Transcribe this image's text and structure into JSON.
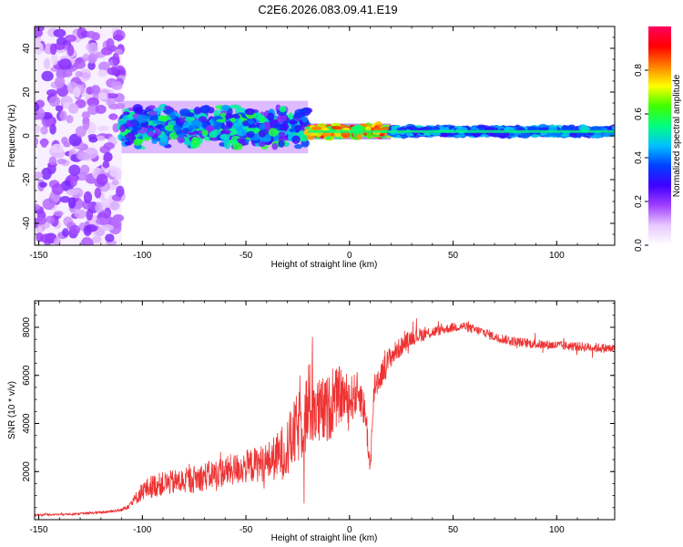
{
  "title": "C2E6.2026.083.09.41.E19",
  "chart_data": [
    {
      "type": "heatmap",
      "name": "spectrogram",
      "xlabel": "Height of straight line (km)",
      "ylabel": "Frequency (Hz)",
      "xlim": [
        -152,
        128
      ],
      "ylim": [
        -50,
        50
      ],
      "xticks": [
        -150,
        -100,
        -50,
        0,
        50,
        100
      ],
      "yticks": [
        -40,
        -20,
        0,
        20,
        40
      ],
      "colorbar": {
        "label": "Normalized spectral amplitude",
        "range": [
          0,
          1
        ],
        "ticks": [
          0.0,
          0.2,
          0.4,
          0.6,
          0.8
        ],
        "colors": [
          "#ffffff",
          "#e8c8ff",
          "#a040ff",
          "#4000ff",
          "#0040ff",
          "#00c0ff",
          "#00ff80",
          "#40ff00",
          "#ffff00",
          "#ff8000",
          "#ff0000",
          "#ff0060"
        ]
      },
      "bands": [
        {
          "x": [
            -152,
            -110
          ],
          "center": 0,
          "spread": 50,
          "amplitude": 0.2
        },
        {
          "x": [
            -110,
            -20
          ],
          "center": 4,
          "spread": 10,
          "amplitude": 0.55
        },
        {
          "x": [
            -20,
            20
          ],
          "center": 2,
          "spread": 3,
          "amplitude": 0.9
        },
        {
          "x": [
            20,
            128
          ],
          "center": 2,
          "spread": 2,
          "amplitude": 0.45
        }
      ]
    },
    {
      "type": "line",
      "name": "snr",
      "xlabel": "Height of straight line (km)",
      "ylabel": "SNR (10 * v/v)",
      "xlim": [
        -152,
        128
      ],
      "ylim": [
        0,
        9100
      ],
      "xticks": [
        -150,
        -100,
        -50,
        0,
        50,
        100
      ],
      "yticks": [
        2000,
        4000,
        6000,
        8000
      ],
      "color": "#ee3333",
      "series": [
        {
          "name": "SNR",
          "x": [
            -152,
            -140,
            -130,
            -120,
            -110,
            -105,
            -100,
            -95,
            -90,
            -80,
            -70,
            -60,
            -50,
            -40,
            -35,
            -30,
            -25,
            -20,
            -18,
            -15,
            -10,
            -5,
            0,
            5,
            8,
            10,
            12,
            15,
            20,
            25,
            30,
            35,
            40,
            45,
            50,
            55,
            60,
            65,
            70,
            80,
            90,
            100,
            110,
            120,
            128
          ],
          "y": [
            200,
            220,
            250,
            300,
            400,
            700,
            1200,
            1400,
            1500,
            1600,
            1800,
            2000,
            2200,
            2400,
            2600,
            3000,
            3800,
            4500,
            5000,
            4400,
            4600,
            5200,
            5000,
            5300,
            4200,
            2000,
            5600,
            6000,
            6800,
            7200,
            7600,
            7700,
            7800,
            7900,
            8000,
            8050,
            7900,
            7800,
            7600,
            7400,
            7300,
            7250,
            7200,
            7150,
            7100
          ],
          "noise": [
            40,
            40,
            40,
            50,
            60,
            200,
            400,
            500,
            500,
            550,
            600,
            650,
            700,
            800,
            1000,
            1300,
            1500,
            1800,
            2000,
            1500,
            1400,
            1200,
            1000,
            900,
            700,
            500,
            700,
            600,
            500,
            400,
            350,
            300,
            250,
            200,
            200,
            200,
            200,
            200,
            200,
            200,
            200,
            200,
            200,
            200,
            200
          ]
        }
      ]
    }
  ]
}
